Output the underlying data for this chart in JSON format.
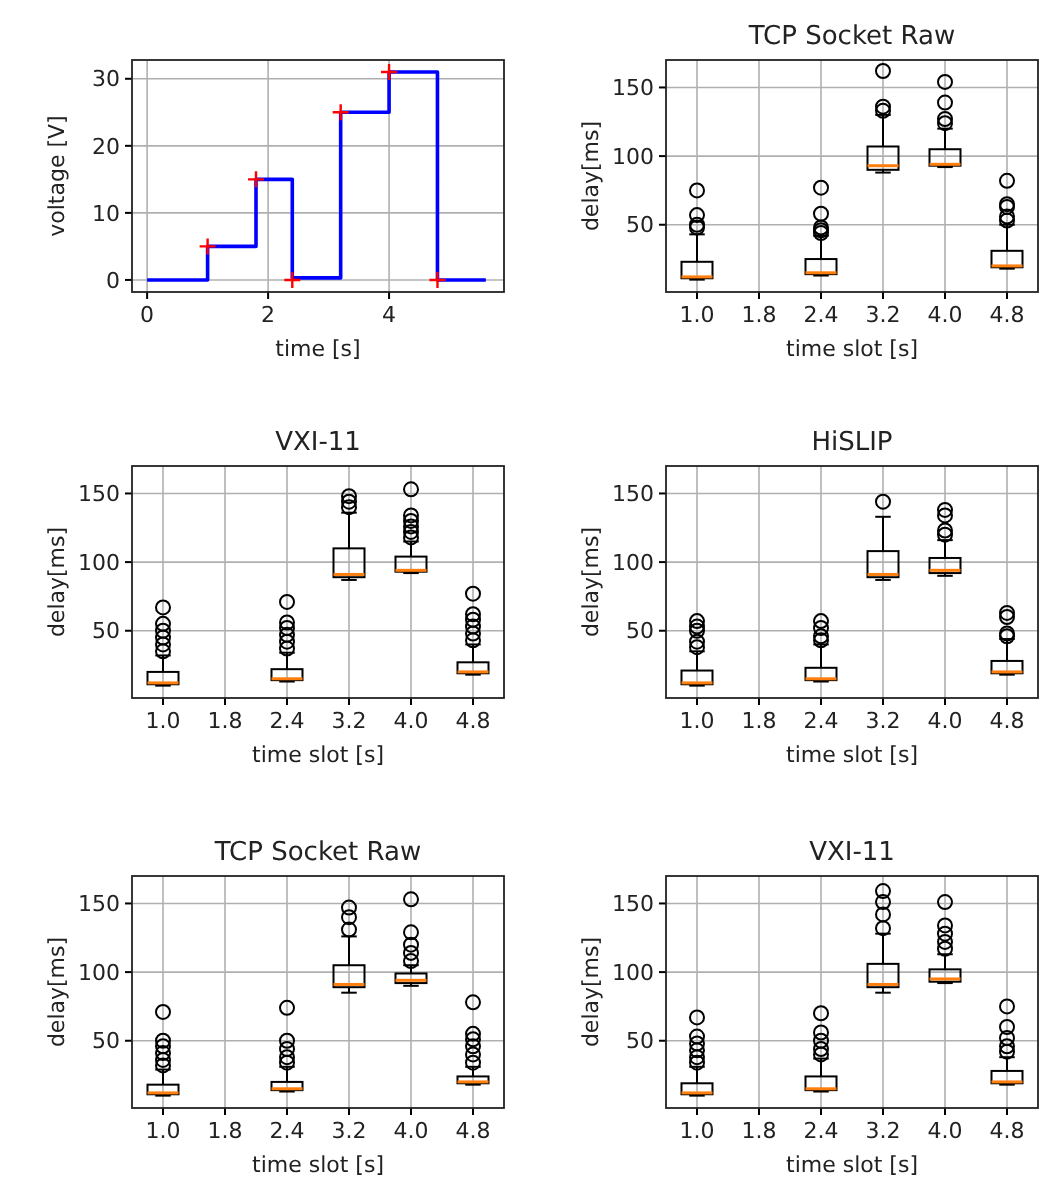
{
  "chart_data": [
    {
      "type": "step",
      "xlabel": "time [s]",
      "ylabel": "voltage [V]",
      "xlim": [
        -0.25,
        5.9
      ],
      "ylim": [
        -1.8,
        32.8
      ],
      "xticks": [
        0,
        2,
        4
      ],
      "yticks": [
        0,
        10,
        20,
        30
      ],
      "grid": true,
      "series": [
        {
          "type": "step",
          "color": "#0000ff",
          "x": [
            0,
            1,
            1.8,
            2.4,
            3.2,
            4.0,
            4.8,
            5.6
          ],
          "values": [
            0,
            5,
            15,
            0.3,
            25,
            31,
            0,
            0
          ]
        },
        {
          "type": "scatter",
          "color": "#ff0000",
          "marker": "cross",
          "x": [
            1,
            1.8,
            2.4,
            3.2,
            4.0,
            4.8
          ],
          "values": [
            5,
            15,
            0,
            25,
            31,
            0
          ]
        }
      ]
    },
    {
      "type": "box",
      "title": "TCP Socket Raw",
      "xlabel": "time slot [s]",
      "ylabel": "delay[ms]",
      "ylim": [
        1,
        170
      ],
      "yticks": [
        50,
        100,
        150
      ],
      "grid": true,
      "categories": [
        "1.0",
        "1.8",
        "2.4",
        "3.2",
        "4.0",
        "4.8"
      ],
      "boxes": [
        {
          "low": 10,
          "q1": 11,
          "median": 12,
          "q3": 23,
          "high": 43,
          "outliers": [
            48,
            50,
            57,
            75
          ]
        },
        null,
        {
          "low": 13,
          "q1": 14,
          "median": 15,
          "q3": 25,
          "high": 42,
          "outliers": [
            44,
            46,
            48,
            58,
            77
          ]
        },
        {
          "low": 88,
          "q1": 90,
          "median": 93,
          "q3": 107,
          "high": 130,
          "outliers": [
            133,
            136,
            162
          ]
        },
        {
          "low": 92,
          "q1": 93,
          "median": 94,
          "q3": 105,
          "high": 120,
          "outliers": [
            124,
            127,
            139,
            154
          ]
        },
        {
          "low": 18,
          "q1": 19,
          "median": 20,
          "q3": 31,
          "high": 50,
          "outliers": [
            53,
            56,
            63,
            65,
            82
          ]
        }
      ]
    },
    {
      "type": "box",
      "title": "VXI-11",
      "xlabel": "time slot [s]",
      "ylabel": "delay[ms]",
      "ylim": [
        1,
        170
      ],
      "yticks": [
        50,
        100,
        150
      ],
      "grid": true,
      "categories": [
        "1.0",
        "1.8",
        "2.4",
        "3.2",
        "4.0",
        "4.8"
      ],
      "boxes": [
        {
          "low": 10,
          "q1": 11,
          "median": 12,
          "q3": 20,
          "high": 32,
          "outliers": [
            35,
            40,
            45,
            50,
            55,
            67
          ]
        },
        null,
        {
          "low": 13,
          "q1": 14,
          "median": 15,
          "q3": 22,
          "high": 34,
          "outliers": [
            37,
            42,
            47,
            52,
            56,
            71
          ]
        },
        {
          "low": 87,
          "q1": 89,
          "median": 91,
          "q3": 110,
          "high": 136,
          "outliers": [
            140,
            144,
            148
          ]
        },
        {
          "low": 92,
          "q1": 93,
          "median": 94,
          "q3": 104,
          "high": 115,
          "outliers": [
            118,
            122,
            126,
            130,
            134,
            153
          ]
        },
        {
          "low": 18,
          "q1": 19,
          "median": 20,
          "q3": 27,
          "high": 40,
          "outliers": [
            43,
            48,
            53,
            58,
            62,
            77
          ]
        }
      ]
    },
    {
      "type": "box",
      "title": "HiSLIP",
      "xlabel": "time slot [s]",
      "ylabel": "delay[ms]",
      "ylim": [
        1,
        170
      ],
      "yticks": [
        50,
        100,
        150
      ],
      "grid": true,
      "categories": [
        "1.0",
        "1.8",
        "2.4",
        "3.2",
        "4.0",
        "4.8"
      ],
      "boxes": [
        {
          "low": 10,
          "q1": 11,
          "median": 12,
          "q3": 21,
          "high": 35,
          "outliers": [
            38,
            42,
            50,
            53,
            57
          ]
        },
        null,
        {
          "low": 13,
          "q1": 14,
          "median": 15,
          "q3": 23,
          "high": 40,
          "outliers": [
            43,
            46,
            52,
            57
          ]
        },
        {
          "low": 87,
          "q1": 89,
          "median": 91,
          "q3": 108,
          "high": 133,
          "outliers": [
            144
          ]
        },
        {
          "low": 90,
          "q1": 92,
          "median": 94,
          "q3": 103,
          "high": 116,
          "outliers": [
            120,
            123,
            134,
            138
          ]
        },
        {
          "low": 18,
          "q1": 19,
          "median": 20,
          "q3": 28,
          "high": 44,
          "outliers": [
            46,
            48,
            60,
            63
          ]
        }
      ]
    },
    {
      "type": "box",
      "title": "TCP Socket Raw",
      "xlabel": "time slot [s]",
      "ylabel": "delay[ms]",
      "ylim": [
        1,
        170
      ],
      "yticks": [
        50,
        100,
        150
      ],
      "grid": true,
      "categories": [
        "1.0",
        "1.8",
        "2.4",
        "3.2",
        "4.0",
        "4.8"
      ],
      "boxes": [
        {
          "low": 10,
          "q1": 11,
          "median": 12,
          "q3": 18,
          "high": 29,
          "outliers": [
            32,
            36,
            41,
            46,
            50,
            71
          ]
        },
        null,
        {
          "low": 13,
          "q1": 14,
          "median": 15,
          "q3": 20,
          "high": 31,
          "outliers": [
            34,
            38,
            44,
            50,
            74
          ]
        },
        {
          "low": 85,
          "q1": 89,
          "median": 91,
          "q3": 105,
          "high": 126,
          "outliers": [
            131,
            140,
            147
          ]
        },
        {
          "low": 90,
          "q1": 92,
          "median": 94,
          "q3": 99,
          "high": 105,
          "outliers": [
            108,
            114,
            120,
            129,
            153
          ]
        },
        {
          "low": 18,
          "q1": 19,
          "median": 20,
          "q3": 24,
          "high": 31,
          "outliers": [
            34,
            40,
            46,
            51,
            55,
            78
          ]
        }
      ]
    },
    {
      "type": "box",
      "title": "VXI-11",
      "xlabel": "time slot [s]",
      "ylabel": "delay[ms]",
      "ylim": [
        1,
        170
      ],
      "yticks": [
        50,
        100,
        150
      ],
      "grid": true,
      "categories": [
        "1.0",
        "1.8",
        "2.4",
        "3.2",
        "4.0",
        "4.8"
      ],
      "boxes": [
        {
          "low": 10,
          "q1": 11,
          "median": 12,
          "q3": 19,
          "high": 31,
          "outliers": [
            34,
            38,
            43,
            48,
            53,
            67
          ]
        },
        null,
        {
          "low": 13,
          "q1": 14,
          "median": 15,
          "q3": 24,
          "high": 37,
          "outliers": [
            40,
            44,
            50,
            56,
            70
          ]
        },
        {
          "low": 85,
          "q1": 89,
          "median": 91,
          "q3": 106,
          "high": 128,
          "outliers": [
            132,
            142,
            151,
            159
          ]
        },
        {
          "low": 92,
          "q1": 93,
          "median": 95,
          "q3": 102,
          "high": 113,
          "outliers": [
            117,
            122,
            128,
            134,
            151
          ]
        },
        {
          "low": 18,
          "q1": 19,
          "median": 20,
          "q3": 28,
          "high": 38,
          "outliers": [
            42,
            46,
            52,
            60,
            75
          ]
        }
      ]
    }
  ]
}
